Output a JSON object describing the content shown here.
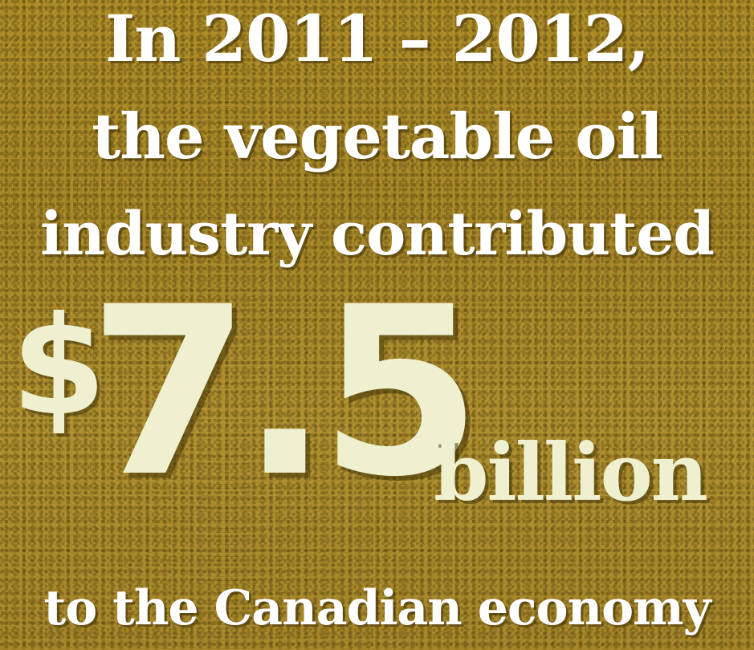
{
  "headline": {
    "line1": "In 2011 – 2012,",
    "line2": "the vegetable oil",
    "line3": "industry contributed"
  },
  "figure": {
    "currency": "$",
    "amount": "7.5",
    "unit": "billion"
  },
  "footer": {
    "line": "to the Canadian economy"
  },
  "colors": {
    "background": "#ad8e2d",
    "headline_text": "#ffffff",
    "figure_text": "#eef0cf"
  }
}
